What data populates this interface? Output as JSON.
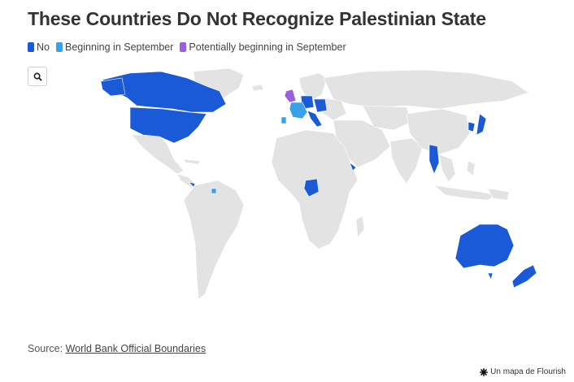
{
  "title": "These Countries Do Not Recognize Palestinian State",
  "legend": [
    {
      "label": "No",
      "color": "#1a5ad7"
    },
    {
      "label": "Beginning in September",
      "color": "#3aa0e8"
    },
    {
      "label": "Potentially beginning in September",
      "color": "#9b5fe0"
    }
  ],
  "colors": {
    "land": "#e3e3e3",
    "border": "#ffffff"
  },
  "zoom": {
    "icon": "search-icon"
  },
  "source": {
    "prefix": "Source: ",
    "link": "World Bank Official Boundaries"
  },
  "credit": {
    "icon": "flourish-star-icon",
    "text": "Un mapa de Flourish"
  }
}
